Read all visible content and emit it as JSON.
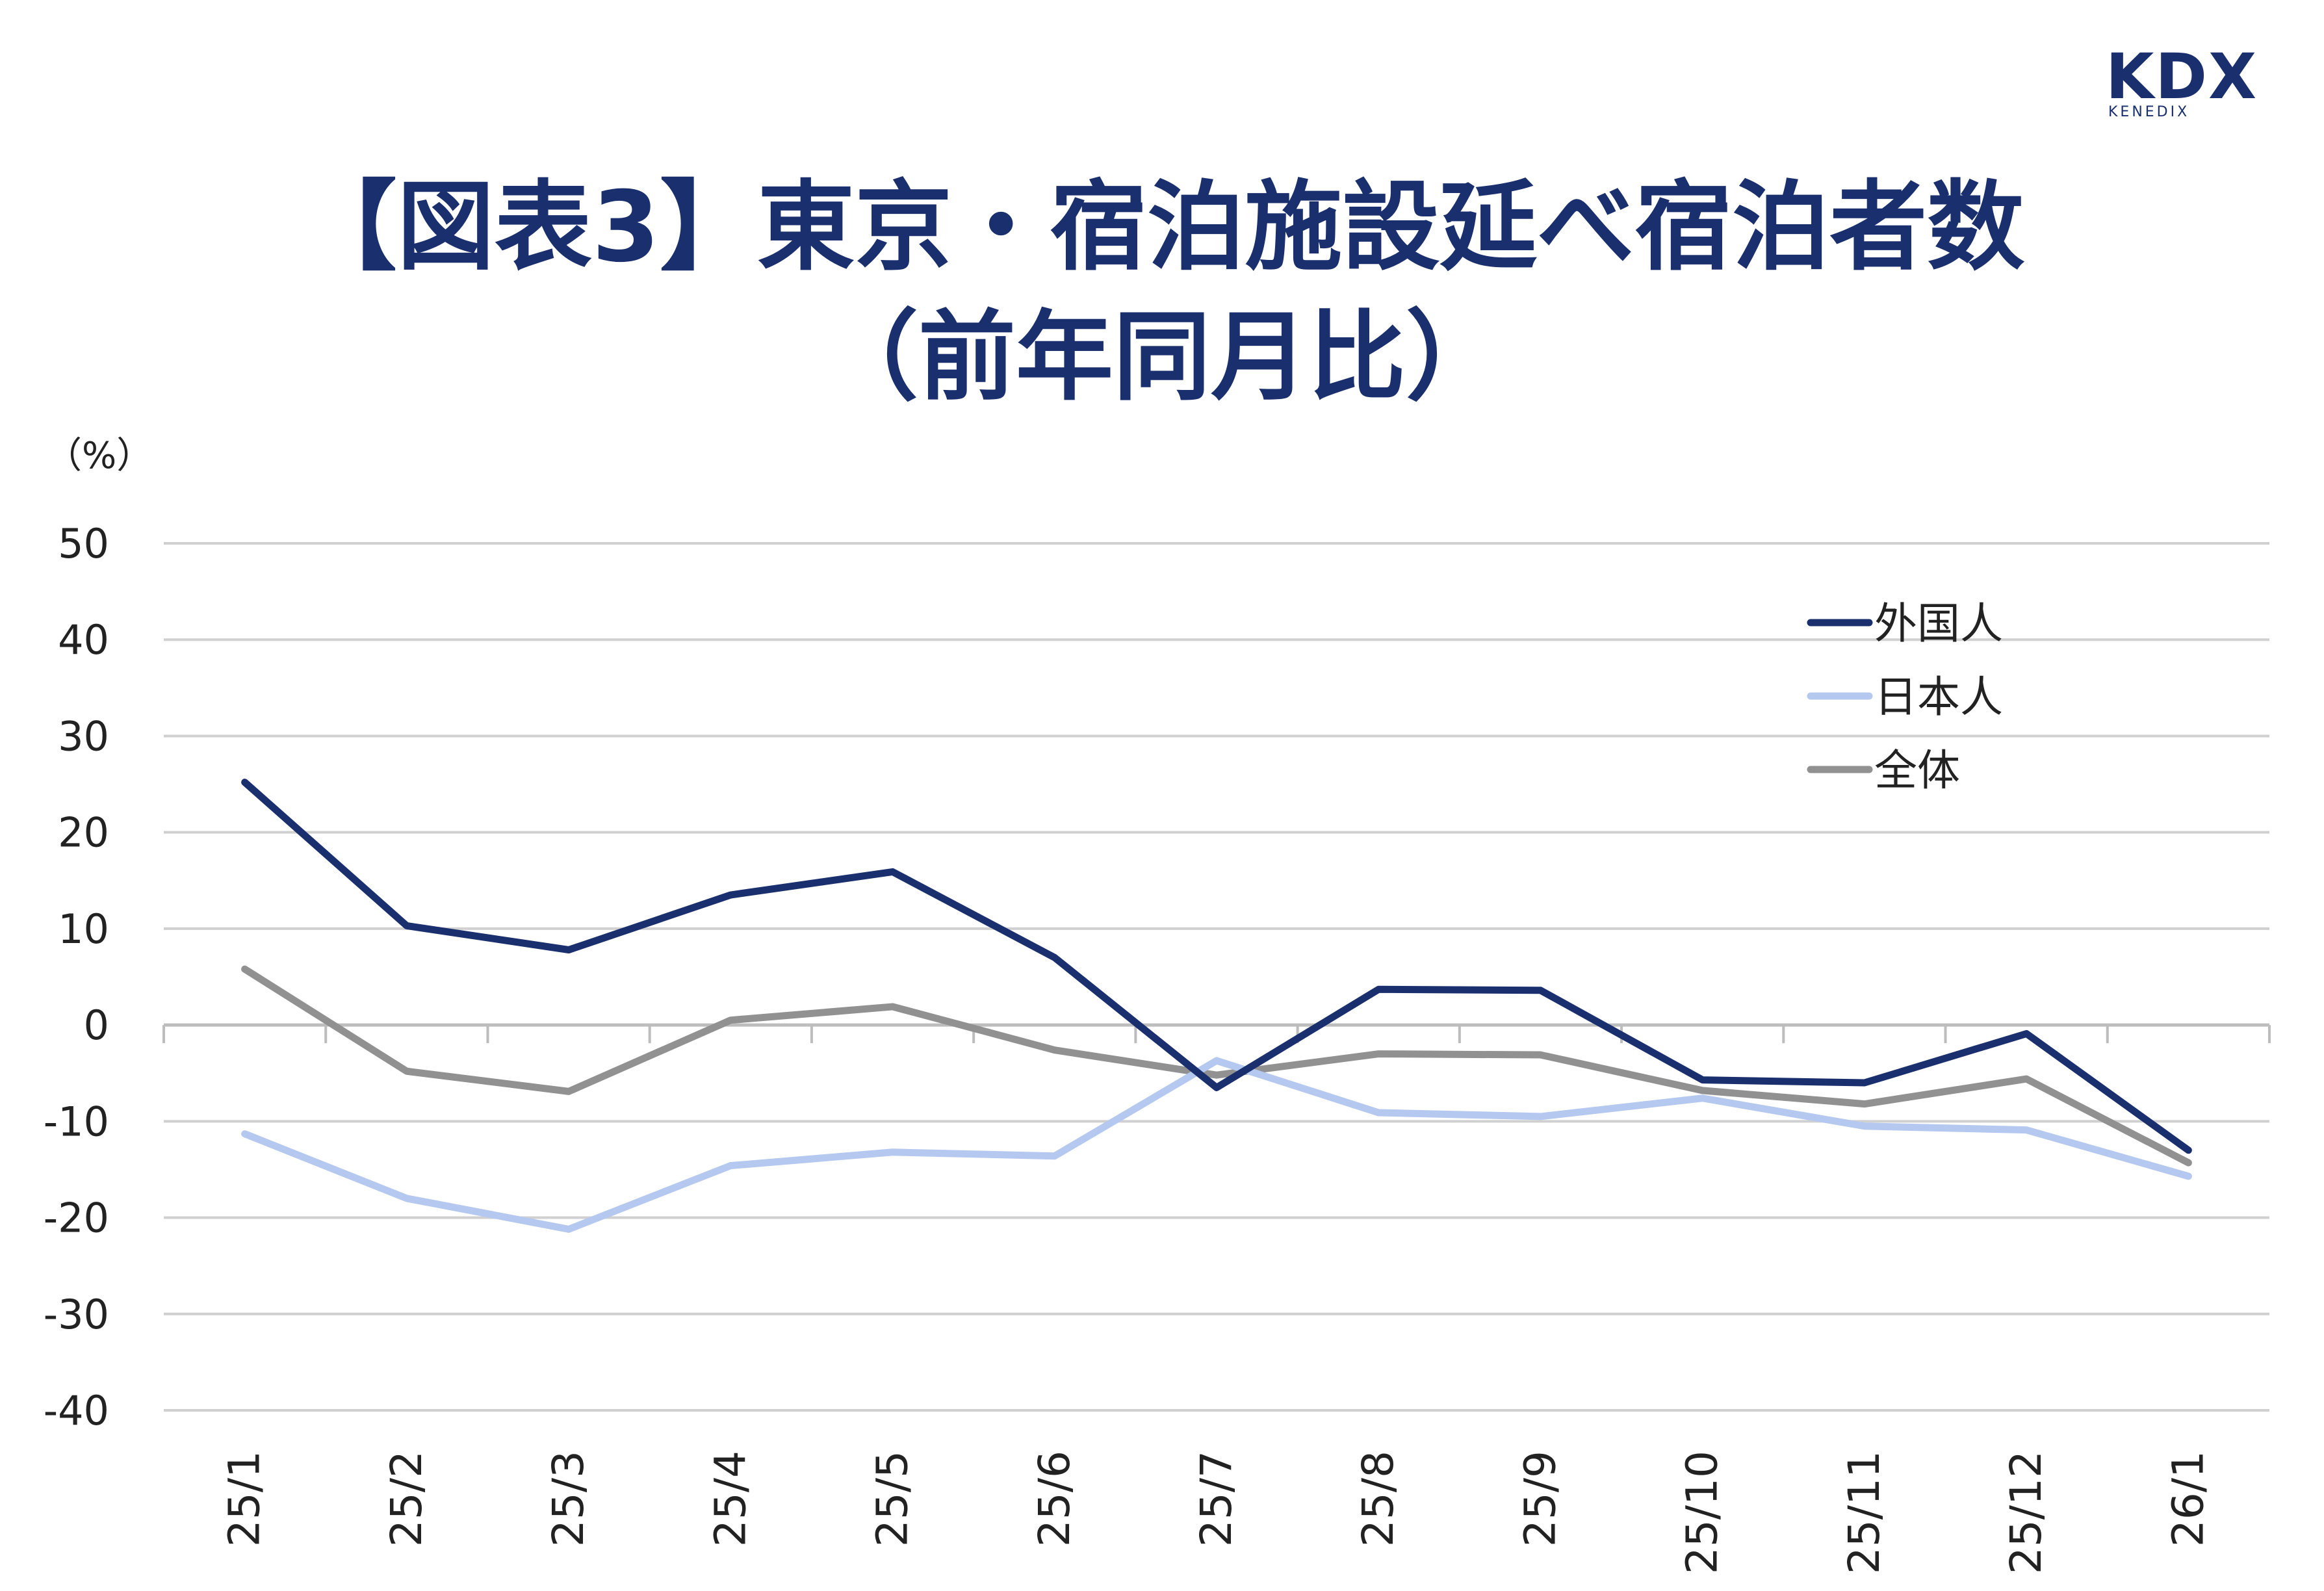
{
  "logo": {
    "mark": "KDX",
    "sub": "KENEDIX"
  },
  "header": {
    "title_line1": "【図表3】東京・宿泊施設延べ宿泊者数",
    "title_line2": "（前年同月比）"
  },
  "chart_data": {
    "type": "line",
    "unit_label": "（%）",
    "categories": [
      "25/1",
      "25/2",
      "25/3",
      "25/4",
      "25/5",
      "25/6",
      "25/7",
      "25/8",
      "25/9",
      "25/10",
      "25/11",
      "25/12",
      "26/1"
    ],
    "ylim": [
      -40,
      50
    ],
    "yticks": [
      50,
      40,
      30,
      20,
      10,
      0,
      -10,
      -20,
      -30,
      -40
    ],
    "grid": true,
    "legend_position": "top-right",
    "series": [
      {
        "name": "外国人",
        "color": "#1a2f6e",
        "values": [
          25.2,
          10.3,
          7.8,
          13.5,
          15.9,
          7.0,
          -6.5,
          3.7,
          3.6,
          -5.7,
          -6.0,
          -0.9,
          -13.0
        ]
      },
      {
        "name": "日本人",
        "color": "#b4c8f0",
        "values": [
          -11.3,
          -18.0,
          -21.2,
          -14.6,
          -13.2,
          -13.6,
          -3.7,
          -9.1,
          -9.5,
          -7.6,
          -10.5,
          -10.9,
          -15.7
        ]
      },
      {
        "name": "全体",
        "color": "#919191",
        "values": [
          5.8,
          -4.8,
          -6.9,
          0.5,
          1.9,
          -2.6,
          -5.2,
          -3.0,
          -3.1,
          -6.8,
          -8.2,
          -5.6,
          -14.3
        ]
      }
    ]
  }
}
